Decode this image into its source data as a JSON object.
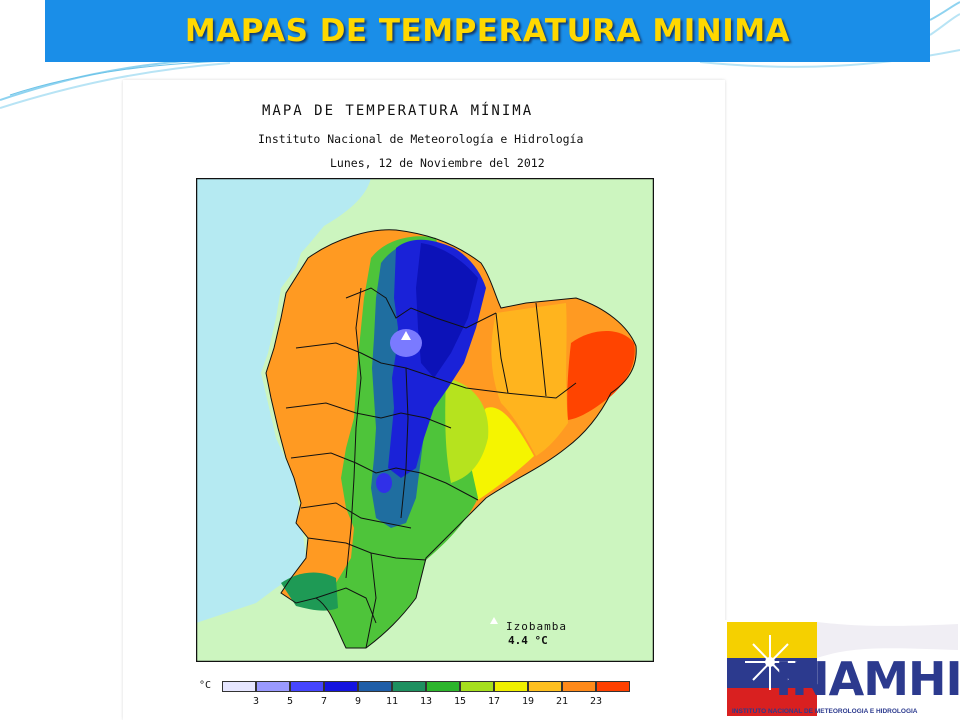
{
  "slide": {
    "title": "MAPAS DE TEMPERATURA MINIMA"
  },
  "map": {
    "title": "MAPA DE TEMPERATURA MÍNIMA",
    "institution": "Instituto Nacional de Meteorología e Hidrología",
    "date": "Lunes, 12 de Noviembre del 2012",
    "marker": {
      "name": "Izobamba",
      "value": "4.4 °C"
    },
    "colors": {
      "ocean": "#b5eaf2",
      "neighbor": "#ccf5bf"
    }
  },
  "legend": {
    "unit": "°C",
    "ticks": [
      "3",
      "5",
      "7",
      "9",
      "11",
      "13",
      "15",
      "17",
      "19",
      "21",
      "23"
    ],
    "colors": [
      "#e6e6ff",
      "#9a9aff",
      "#4646ff",
      "#1414e0",
      "#1f5ea8",
      "#1e9060",
      "#2cb52c",
      "#a6e01e",
      "#f0f000",
      "#ffc020",
      "#ff8a1a",
      "#ff4000"
    ]
  },
  "logo": {
    "name": "INAMHI",
    "subtitle": "INSTITUTO NACIONAL DE METEOROLOGIA E HIDROLOGIA"
  }
}
